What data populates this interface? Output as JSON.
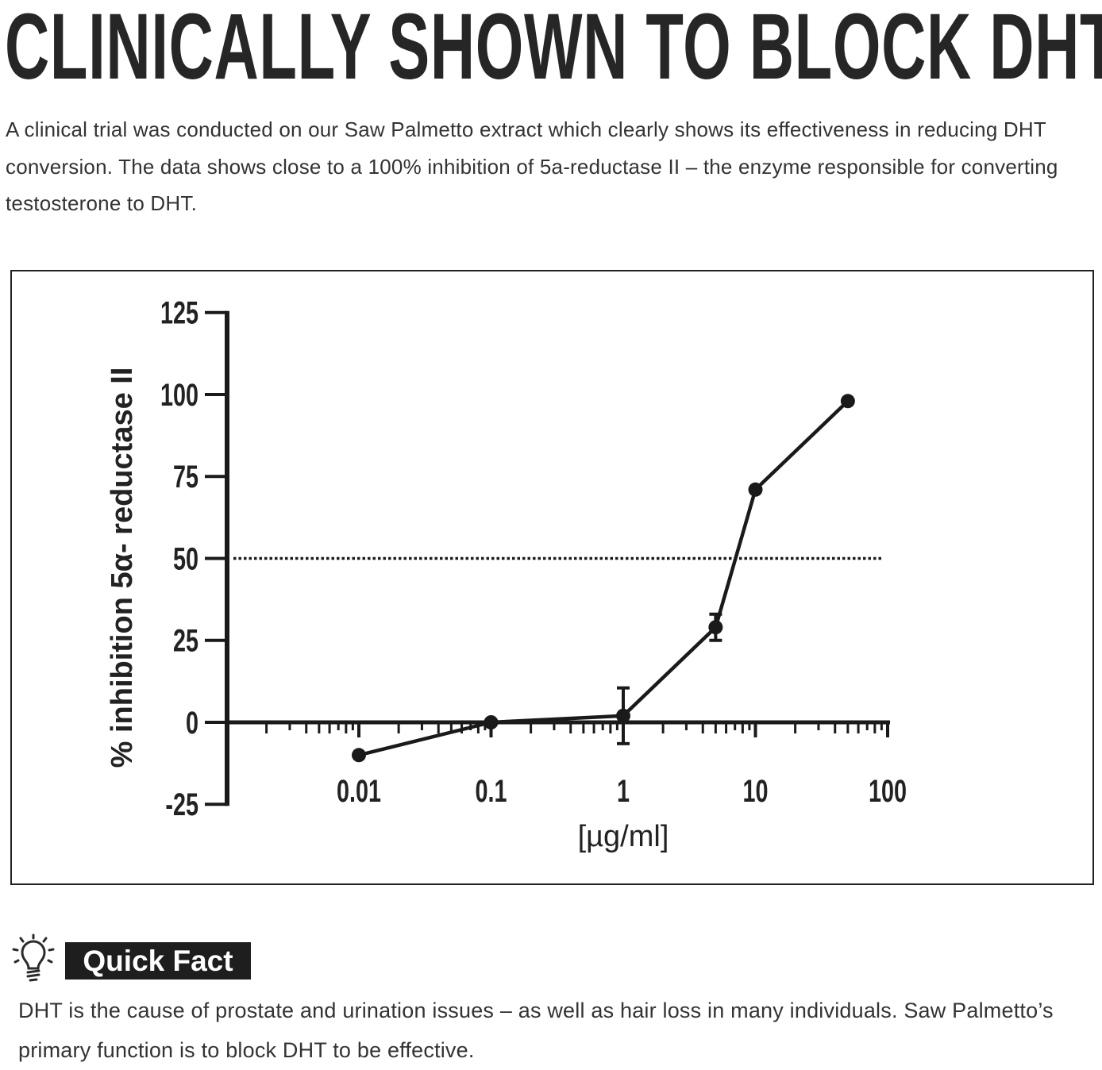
{
  "title": "CLINICALLY SHOWN TO BLOCK DHT",
  "intro": "A clinical trial was conducted on our Saw Palmetto extract which clearly shows its effectiveness in reducing DHT conversion. The data shows close to a 100% inhibition of 5a-reductase II – the enzyme responsible for converting testosterone to DHT.",
  "chart_data": {
    "type": "line",
    "title": "",
    "xlabel": "[µg/ml]",
    "ylabel": "% inhibition 5α- reductase II",
    "xscale": "log",
    "xlim": [
      0.001,
      100
    ],
    "ylim": [
      -25,
      125
    ],
    "xticks": [
      "0.01",
      "0.1",
      "1",
      "10",
      "100"
    ],
    "yticks": [
      "125",
      "100",
      "75",
      "50",
      "25",
      "0",
      "-25"
    ],
    "reference_line": {
      "y": 50,
      "style": "dotted"
    },
    "grid": false,
    "color": "#1a1a1a",
    "points": [
      {
        "x": 0.01,
        "y": -10,
        "err": 0
      },
      {
        "x": 0.1,
        "y": 0,
        "err": 0
      },
      {
        "x": 1,
        "y": 2,
        "err": 8.5
      },
      {
        "x": 5,
        "y": 29,
        "err": 4
      },
      {
        "x": 10,
        "y": 71,
        "err": 0
      },
      {
        "x": 50,
        "y": 98,
        "err": 0
      }
    ]
  },
  "quick_fact": {
    "icon": "lightbulb-icon",
    "label": "Quick Fact",
    "text": "DHT is the cause of prostate and urination issues – as well as hair loss in many individuals. Saw Palmetto’s primary function is to block DHT to be effective."
  }
}
